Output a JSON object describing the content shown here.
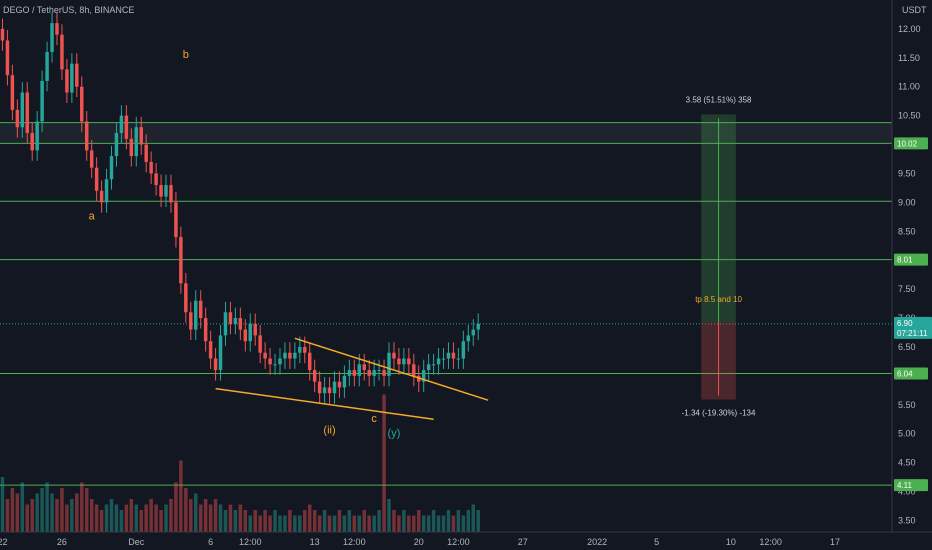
{
  "header": {
    "title": "DEGO / TetherUS, 8h, BINANCE",
    "currency": "USDT"
  },
  "chart_data": {
    "type": "candlestick",
    "symbol": "DEGO / TetherUS",
    "interval": "8h",
    "exchange": "BINANCE",
    "ylim": [
      3.3,
      12.5
    ],
    "y_ticks": [
      "12.00",
      "11.50",
      "11.00",
      "10.50",
      "10.00",
      "9.50",
      "9.00",
      "8.50",
      "8.00",
      "7.50",
      "7.00",
      "6.50",
      "6.00",
      "5.50",
      "5.00",
      "4.50",
      "4.00",
      "3.50"
    ],
    "y_tick_values": [
      12.0,
      11.5,
      11.0,
      10.5,
      10.0,
      9.5,
      9.0,
      8.5,
      8.0,
      7.5,
      7.0,
      6.5,
      6.0,
      5.5,
      5.0,
      4.5,
      4.0,
      3.5
    ],
    "x_ticks": [
      {
        "label": "22",
        "i": 0
      },
      {
        "label": "26",
        "i": 12
      },
      {
        "label": "Dec",
        "i": 27
      },
      {
        "label": "6",
        "i": 42
      },
      {
        "label": "12:00",
        "i": 50
      },
      {
        "label": "13",
        "i": 63
      },
      {
        "label": "12:00",
        "i": 71
      },
      {
        "label": "20",
        "i": 84
      },
      {
        "label": "12:00",
        "i": 92
      },
      {
        "label": "27",
        "i": 105
      },
      {
        "label": "2022",
        "i": 120
      },
      {
        "label": "5",
        "i": 132
      },
      {
        "label": "10",
        "i": 147
      },
      {
        "label": "12:00",
        "i": 155
      },
      {
        "label": "17",
        "i": 168
      }
    ],
    "candle_count_span": 180,
    "closes": [
      11.8,
      11.2,
      10.6,
      10.3,
      10.9,
      10.2,
      9.9,
      10.4,
      11.1,
      11.6,
      12.1,
      11.9,
      11.3,
      10.9,
      11.4,
      11.0,
      10.4,
      9.9,
      9.6,
      9.2,
      9.0,
      9.4,
      9.8,
      10.2,
      10.5,
      10.1,
      9.8,
      10.3,
      10.0,
      9.7,
      9.5,
      9.3,
      9.1,
      9.3,
      9.0,
      8.4,
      7.6,
      7.1,
      6.8,
      7.3,
      7.0,
      6.6,
      6.3,
      6.1,
      6.7,
      7.1,
      6.9,
      7.0,
      6.8,
      6.6,
      6.9,
      6.7,
      6.4,
      6.3,
      6.2,
      6.2,
      6.3,
      6.4,
      6.3,
      6.4,
      6.5,
      6.4,
      6.1,
      5.9,
      5.7,
      5.8,
      5.7,
      5.9,
      5.8,
      6.0,
      6.1,
      6.0,
      6.2,
      6.1,
      6.0,
      6.1,
      6.1,
      6.0,
      6.4,
      6.3,
      6.2,
      6.3,
      6.2,
      6.0,
      5.9,
      6.1,
      6.2,
      6.2,
      6.3,
      6.3,
      6.4,
      6.3,
      6.3,
      6.6,
      6.7,
      6.8,
      6.9
    ],
    "volumes": [
      1.0,
      0.6,
      0.8,
      0.7,
      0.9,
      0.5,
      0.6,
      0.7,
      0.8,
      0.9,
      0.7,
      0.6,
      0.8,
      0.5,
      0.6,
      0.7,
      0.9,
      0.8,
      0.6,
      0.5,
      0.4,
      0.5,
      0.6,
      0.5,
      0.4,
      0.5,
      0.6,
      0.5,
      0.4,
      0.5,
      0.6,
      0.5,
      0.4,
      0.5,
      0.6,
      0.9,
      1.3,
      0.8,
      0.6,
      0.7,
      0.5,
      0.6,
      0.5,
      0.6,
      0.5,
      0.4,
      0.5,
      0.4,
      0.5,
      0.4,
      0.3,
      0.4,
      0.3,
      0.4,
      0.3,
      0.4,
      0.3,
      0.3,
      0.4,
      0.3,
      0.3,
      0.4,
      0.5,
      0.4,
      0.3,
      0.4,
      0.3,
      0.3,
      0.4,
      0.3,
      0.4,
      0.3,
      0.3,
      0.4,
      0.3,
      0.3,
      0.4,
      2.5,
      0.6,
      0.4,
      0.3,
      0.4,
      0.3,
      0.3,
      0.4,
      0.3,
      0.3,
      0.4,
      0.3,
      0.3,
      0.4,
      0.3,
      0.4,
      0.3,
      0.4,
      0.5,
      0.4
    ],
    "horizontal_levels": [
      {
        "value": 10.38,
        "label": ""
      },
      {
        "value": 10.02,
        "label": "10.02"
      },
      {
        "value": 9.02,
        "label": ""
      },
      {
        "value": 8.01,
        "label": "8.01"
      },
      {
        "value": 6.04,
        "label": "6.04"
      },
      {
        "value": 4.11,
        "label": "4.11"
      }
    ],
    "current_price": {
      "value": 6.9,
      "label": "6.90",
      "countdown": "07:21:11"
    },
    "wave_labels": [
      {
        "text": "b",
        "i": 37,
        "y": 11.5,
        "color": "#f7a928"
      },
      {
        "text": "a",
        "i": 18,
        "y": 8.7,
        "color": "#f7a928"
      },
      {
        "text": "(ii)",
        "i": 66,
        "y": 5.0,
        "color": "#f7a928"
      },
      {
        "text": "c",
        "i": 75,
        "y": 5.2,
        "color": "#f7a928"
      },
      {
        "text": "(y)",
        "i": 79,
        "y": 4.95,
        "color": "#26a69a"
      }
    ],
    "trendlines": [
      {
        "i1": 59,
        "y1": 6.65,
        "i2": 98,
        "y2": 5.58
      },
      {
        "i1": 43,
        "y1": 5.78,
        "i2": 87,
        "y2": 5.25
      }
    ],
    "position": {
      "entry": 6.93,
      "target": 10.52,
      "stop": 5.59,
      "i_start": 141,
      "i_end": 148,
      "target_label": "3.58 (51.51%) 358",
      "stop_label": "-1.34 (-19.30%) -134",
      "note": "tp 8.5 and 10"
    }
  }
}
